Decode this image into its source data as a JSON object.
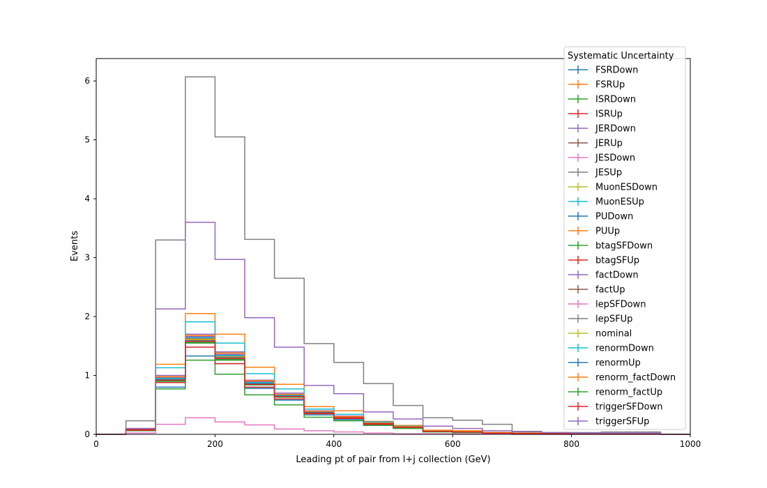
{
  "chart_data": {
    "type": "line",
    "title": "",
    "xlabel": "Leading pt of pair from l+j collection (GeV)",
    "ylabel": "Events",
    "xlim": [
      0,
      1000
    ],
    "ylim": [
      0,
      6.38
    ],
    "xticks": [
      0,
      200,
      400,
      600,
      800,
      1000
    ],
    "yticks": [
      0,
      1,
      2,
      3,
      4,
      5,
      6
    ],
    "grid": false,
    "legend_title": "Systematic Uncertainty",
    "legend_position": "top-right",
    "bin_edges": [
      0,
      50,
      100,
      150,
      200,
      250,
      300,
      350,
      400,
      450,
      500,
      550,
      600,
      650,
      700,
      750,
      800,
      850,
      900,
      950,
      1000
    ],
    "series": [
      {
        "name": "FSRDown",
        "color": "#1f77b4",
        "values": [
          0,
          0.08,
          0.8,
          1.33,
          1.2,
          0.78,
          0.58,
          0.33,
          0.25,
          0.16,
          0.11,
          0.05,
          0.04,
          0.02,
          0.01,
          0.01,
          0.01,
          0.01,
          0.01,
          0
        ]
      },
      {
        "name": "FSRUp",
        "color": "#ff7f0e",
        "values": [
          0,
          0.1,
          1.19,
          2.05,
          1.7,
          1.14,
          0.85,
          0.47,
          0.4,
          0.22,
          0.15,
          0.07,
          0.06,
          0.03,
          0.02,
          0.02,
          0.01,
          0.01,
          0.01,
          0
        ]
      },
      {
        "name": "ISRDown",
        "color": "#2ca02c",
        "values": [
          0,
          0.06,
          0.77,
          1.26,
          1.02,
          0.67,
          0.5,
          0.29,
          0.23,
          0.15,
          0.1,
          0.04,
          0.03,
          0.02,
          0.01,
          0.01,
          0.01,
          0.01,
          0.01,
          0
        ]
      },
      {
        "name": "ISRUp",
        "color": "#d62728",
        "values": [
          0,
          0.07,
          0.88,
          1.48,
          1.2,
          0.8,
          0.6,
          0.35,
          0.27,
          0.17,
          0.12,
          0.05,
          0.04,
          0.02,
          0.01,
          0.01,
          0.01,
          0.01,
          0.01,
          0
        ]
      },
      {
        "name": "JERDown",
        "color": "#9467bd",
        "values": [
          0,
          0.08,
          1.0,
          1.7,
          1.4,
          0.92,
          0.7,
          0.4,
          0.31,
          0.2,
          0.13,
          0.06,
          0.05,
          0.03,
          0.02,
          0.01,
          0.01,
          0.01,
          0.01,
          0
        ]
      },
      {
        "name": "JERUp",
        "color": "#8c564b",
        "values": [
          0,
          0.08,
          0.95,
          1.62,
          1.33,
          0.88,
          0.66,
          0.38,
          0.29,
          0.19,
          0.13,
          0.06,
          0.05,
          0.03,
          0.02,
          0.01,
          0.01,
          0.01,
          0.01,
          0
        ]
      },
      {
        "name": "JESDown",
        "color": "#e377c2",
        "values": [
          0,
          0.02,
          0.17,
          0.28,
          0.21,
          0.16,
          0.09,
          0.06,
          0.04,
          0.02,
          0.01,
          0.01,
          0.01,
          0.01,
          0,
          0,
          0,
          0,
          0,
          0
        ]
      },
      {
        "name": "JESUp",
        "color": "#7f7f7f",
        "values": [
          0,
          0.23,
          3.3,
          6.07,
          5.05,
          3.31,
          2.65,
          1.54,
          1.22,
          0.86,
          0.49,
          0.28,
          0.24,
          0.17,
          0.05,
          0.03,
          0.03,
          0.04,
          0.04,
          0
        ]
      },
      {
        "name": "MuonESDown",
        "color": "#bcbd22",
        "values": [
          0,
          0.08,
          0.93,
          1.6,
          1.3,
          0.86,
          0.65,
          0.37,
          0.28,
          0.18,
          0.12,
          0.05,
          0.04,
          0.03,
          0.02,
          0.01,
          0.01,
          0.01,
          0.01,
          0
        ]
      },
      {
        "name": "MuonESUp",
        "color": "#17becf",
        "values": [
          0,
          0.09,
          1.13,
          1.91,
          1.55,
          1.03,
          0.77,
          0.43,
          0.34,
          0.21,
          0.14,
          0.06,
          0.05,
          0.03,
          0.02,
          0.01,
          0.01,
          0.01,
          0.01,
          0
        ]
      },
      {
        "name": "PUDown",
        "color": "#1f77b4",
        "values": [
          0,
          0.08,
          0.91,
          1.57,
          1.28,
          0.85,
          0.64,
          0.36,
          0.28,
          0.18,
          0.12,
          0.05,
          0.04,
          0.02,
          0.01,
          0.01,
          0.01,
          0.01,
          0.01,
          0
        ]
      },
      {
        "name": "PUUp",
        "color": "#ff7f0e",
        "values": [
          0,
          0.08,
          0.94,
          1.62,
          1.32,
          0.87,
          0.65,
          0.37,
          0.29,
          0.18,
          0.12,
          0.05,
          0.04,
          0.03,
          0.02,
          0.01,
          0.01,
          0.01,
          0.01,
          0
        ]
      },
      {
        "name": "btagSFDown",
        "color": "#2ca02c",
        "values": [
          0,
          0.08,
          0.9,
          1.55,
          1.26,
          0.84,
          0.63,
          0.36,
          0.28,
          0.18,
          0.12,
          0.05,
          0.04,
          0.02,
          0.01,
          0.01,
          0.01,
          0.01,
          0.01,
          0
        ]
      },
      {
        "name": "btagSFUp",
        "color": "#d62728",
        "values": [
          0,
          0.08,
          0.96,
          1.65,
          1.35,
          0.89,
          0.67,
          0.38,
          0.29,
          0.19,
          0.13,
          0.06,
          0.05,
          0.03,
          0.02,
          0.01,
          0.01,
          0.01,
          0.01,
          0
        ]
      },
      {
        "name": "factDown",
        "color": "#9467bd",
        "values": [
          0,
          0.08,
          0.97,
          1.66,
          1.36,
          0.9,
          0.68,
          0.39,
          0.3,
          0.19,
          0.13,
          0.06,
          0.05,
          0.03,
          0.02,
          0.01,
          0.01,
          0.01,
          0.01,
          0
        ]
      },
      {
        "name": "factUp",
        "color": "#8c564b",
        "values": [
          0,
          0.08,
          0.92,
          1.58,
          1.29,
          0.85,
          0.64,
          0.36,
          0.28,
          0.18,
          0.12,
          0.05,
          0.04,
          0.02,
          0.01,
          0.01,
          0.01,
          0.01,
          0.01,
          0
        ]
      },
      {
        "name": "lepSFDown",
        "color": "#e377c2",
        "values": [
          0,
          0.08,
          0.92,
          1.57,
          1.28,
          0.85,
          0.64,
          0.36,
          0.28,
          0.18,
          0.12,
          0.05,
          0.04,
          0.02,
          0.01,
          0.01,
          0.01,
          0.01,
          0.01,
          0
        ]
      },
      {
        "name": "lepSFUp",
        "color": "#7f7f7f",
        "values": [
          0,
          0.08,
          0.95,
          1.63,
          1.33,
          0.88,
          0.66,
          0.38,
          0.29,
          0.19,
          0.13,
          0.06,
          0.05,
          0.03,
          0.02,
          0.01,
          0.01,
          0.01,
          0.01,
          0
        ]
      },
      {
        "name": "nominal",
        "color": "#bcbd22",
        "values": [
          0,
          0.08,
          0.94,
          1.6,
          1.31,
          0.87,
          0.65,
          0.37,
          0.29,
          0.18,
          0.12,
          0.05,
          0.04,
          0.03,
          0.02,
          0.01,
          0.01,
          0.01,
          0.01,
          0
        ]
      },
      {
        "name": "renormDown",
        "color": "#17becf",
        "values": [
          0,
          0.08,
          0.95,
          1.64,
          1.34,
          0.88,
          0.66,
          0.38,
          0.29,
          0.19,
          0.13,
          0.06,
          0.05,
          0.03,
          0.02,
          0.01,
          0.01,
          0.01,
          0.01,
          0
        ]
      },
      {
        "name": "renormUp",
        "color": "#1f77b4",
        "values": [
          0,
          0.08,
          0.93,
          1.59,
          1.3,
          0.86,
          0.65,
          0.37,
          0.28,
          0.18,
          0.12,
          0.05,
          0.04,
          0.02,
          0.01,
          0.01,
          0.01,
          0.01,
          0.01,
          0
        ]
      },
      {
        "name": "renorm_factDown",
        "color": "#ff7f0e",
        "values": [
          0,
          0.08,
          0.98,
          1.68,
          1.38,
          0.91,
          0.68,
          0.39,
          0.3,
          0.19,
          0.13,
          0.06,
          0.05,
          0.03,
          0.02,
          0.01,
          0.01,
          0.01,
          0.01,
          0
        ]
      },
      {
        "name": "renorm_factUp",
        "color": "#2ca02c",
        "values": [
          0,
          0.08,
          0.91,
          1.56,
          1.27,
          0.84,
          0.63,
          0.36,
          0.28,
          0.18,
          0.12,
          0.05,
          0.04,
          0.02,
          0.01,
          0.01,
          0.01,
          0.01,
          0.01,
          0
        ]
      },
      {
        "name": "triggerSFDown",
        "color": "#d62728",
        "values": [
          0,
          0.08,
          0.92,
          1.58,
          1.29,
          0.85,
          0.64,
          0.36,
          0.28,
          0.18,
          0.12,
          0.05,
          0.04,
          0.02,
          0.01,
          0.01,
          0.01,
          0.01,
          0.01,
          0
        ]
      },
      {
        "name": "triggerSFUp",
        "color": "#9467bd",
        "values": [
          0,
          0.1,
          2.13,
          3.6,
          2.97,
          1.98,
          1.48,
          0.83,
          0.69,
          0.38,
          0.26,
          0.14,
          0.1,
          0.06,
          0.04,
          0.03,
          0.02,
          0.02,
          0.02,
          0
        ]
      }
    ]
  }
}
